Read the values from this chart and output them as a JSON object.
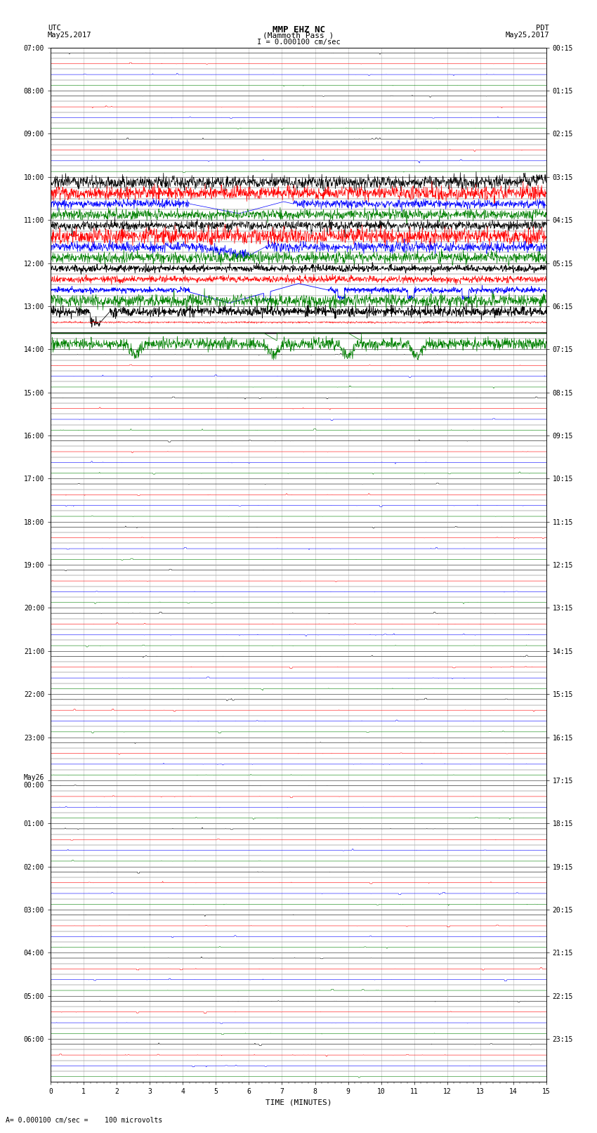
{
  "title_line1": "MMP EHZ NC",
  "title_line2": "(Mammoth Pass )",
  "scale_label": "I = 0.000100 cm/sec",
  "left_header1": "UTC",
  "left_header2": "May25,2017",
  "right_header1": "PDT",
  "right_header2": "May25,2017",
  "bottom_label": "TIME (MINUTES)",
  "bottom_note": "= 0.000100 cm/sec =    100 microvolts",
  "utc_labels": [
    [
      "07:00",
      0
    ],
    [
      "08:00",
      4
    ],
    [
      "09:00",
      8
    ],
    [
      "10:00",
      12
    ],
    [
      "11:00",
      16
    ],
    [
      "12:00",
      20
    ],
    [
      "13:00",
      24
    ],
    [
      "14:00",
      28
    ],
    [
      "15:00",
      32
    ],
    [
      "16:00",
      36
    ],
    [
      "17:00",
      40
    ],
    [
      "18:00",
      44
    ],
    [
      "19:00",
      48
    ],
    [
      "20:00",
      52
    ],
    [
      "21:00",
      56
    ],
    [
      "22:00",
      60
    ],
    [
      "23:00",
      64
    ],
    [
      "May26\n00:00",
      68
    ],
    [
      "01:00",
      72
    ],
    [
      "02:00",
      76
    ],
    [
      "03:00",
      80
    ],
    [
      "04:00",
      84
    ],
    [
      "05:00",
      88
    ],
    [
      "06:00",
      92
    ]
  ],
  "pdt_labels": [
    [
      "00:15",
      0
    ],
    [
      "01:15",
      4
    ],
    [
      "02:15",
      8
    ],
    [
      "03:15",
      12
    ],
    [
      "04:15",
      16
    ],
    [
      "05:15",
      20
    ],
    [
      "06:15",
      24
    ],
    [
      "07:15",
      28
    ],
    [
      "08:15",
      32
    ],
    [
      "09:15",
      36
    ],
    [
      "10:15",
      40
    ],
    [
      "11:15",
      44
    ],
    [
      "12:15",
      48
    ],
    [
      "13:15",
      52
    ],
    [
      "14:15",
      56
    ],
    [
      "15:15",
      60
    ],
    [
      "16:15",
      64
    ],
    [
      "17:15",
      68
    ],
    [
      "18:15",
      72
    ],
    [
      "19:15",
      76
    ],
    [
      "20:15",
      80
    ],
    [
      "21:15",
      84
    ],
    [
      "22:15",
      88
    ],
    [
      "23:15",
      92
    ]
  ],
  "n_rows": 96,
  "n_cols": 1500,
  "background_color": "#ffffff",
  "colors": {
    "black": "#000000",
    "red": "#ff0000",
    "blue": "#0000ff",
    "green": "#008000"
  },
  "fig_width": 8.5,
  "fig_height": 16.13,
  "dpi": 100,
  "green_bar_color": "#00aa00"
}
